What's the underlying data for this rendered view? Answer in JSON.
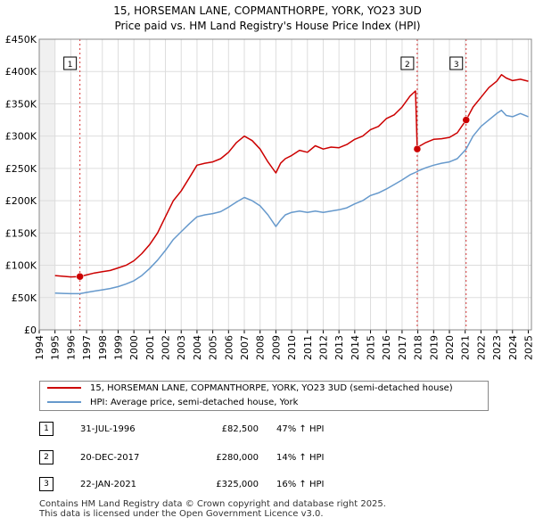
{
  "chart_data": {
    "type": "line",
    "title": "15, HORSEMAN LANE, COPMANTHORPE, YORK, YO23 3UD",
    "subtitle": "Price paid vs. HM Land Registry's House Price Index (HPI)",
    "xlim": [
      1994,
      2025.2
    ],
    "ylim": [
      0,
      450000
    ],
    "x_ticks": [
      1994,
      1995,
      1996,
      1997,
      1998,
      1999,
      2000,
      2001,
      2002,
      2003,
      2004,
      2005,
      2006,
      2007,
      2008,
      2009,
      2010,
      2011,
      2012,
      2013,
      2014,
      2015,
      2016,
      2017,
      2018,
      2019,
      2020,
      2021,
      2022,
      2023,
      2024,
      2025
    ],
    "x_tick_labels": [
      "1994",
      "1995",
      "1996",
      "1997",
      "1998",
      "1999",
      "2000",
      "2001",
      "2002",
      "2003",
      "2004",
      "2005",
      "2006",
      "2007",
      "2008",
      "2009",
      "2010",
      "2011",
      "2012",
      "2013",
      "2014",
      "2015",
      "2016",
      "2017",
      "2018",
      "2019",
      "2020",
      "2021",
      "2022",
      "2023",
      "2024",
      "2025"
    ],
    "y_ticks": [
      0,
      50000,
      100000,
      150000,
      200000,
      250000,
      300000,
      350000,
      400000,
      450000
    ],
    "y_tick_labels": [
      "£0",
      "£50K",
      "£100K",
      "£150K",
      "£200K",
      "£250K",
      "£300K",
      "£350K",
      "£400K",
      "£450K"
    ],
    "grid": true,
    "shaded_before": 1995,
    "series": [
      {
        "name": "15, HORSEMAN LANE, COPMANTHORPE, YORK, YO23 3UD (semi-detached house)",
        "color": "#cc0000",
        "x": [
          1995.0,
          1995.5,
          1996.0,
          1996.58,
          1997.0,
          1997.5,
          1998.0,
          1998.5,
          1999.0,
          1999.5,
          2000.0,
          2000.5,
          2001.0,
          2001.5,
          2002.0,
          2002.5,
          2003.0,
          2003.5,
          2004.0,
          2004.5,
          2005.0,
          2005.5,
          2006.0,
          2006.5,
          2007.0,
          2007.5,
          2008.0,
          2008.5,
          2009.0,
          2009.3,
          2009.6,
          2010.0,
          2010.5,
          2011.0,
          2011.5,
          2012.0,
          2012.5,
          2013.0,
          2013.5,
          2014.0,
          2014.5,
          2015.0,
          2015.5,
          2016.0,
          2016.5,
          2017.0,
          2017.5,
          2017.85,
          2017.96,
          2018.0,
          2018.5,
          2019.0,
          2019.5,
          2020.0,
          2020.5,
          2021.06,
          2021.5,
          2022.0,
          2022.5,
          2023.0,
          2023.3,
          2023.6,
          2024.0,
          2024.5,
          2025.0
        ],
        "values": [
          84000,
          83000,
          82000,
          82500,
          85000,
          88000,
          90000,
          92000,
          96000,
          100000,
          107000,
          118000,
          132000,
          150000,
          175000,
          200000,
          215000,
          235000,
          255000,
          258000,
          260000,
          265000,
          275000,
          290000,
          300000,
          293000,
          280000,
          260000,
          243000,
          258000,
          265000,
          270000,
          278000,
          275000,
          285000,
          280000,
          283000,
          282000,
          287000,
          295000,
          300000,
          310000,
          315000,
          327000,
          333000,
          345000,
          362000,
          370000,
          280000,
          283000,
          290000,
          295000,
          296000,
          298000,
          305000,
          325000,
          345000,
          360000,
          375000,
          385000,
          395000,
          390000,
          386000,
          388000,
          385000
        ]
      },
      {
        "name": "HPI: Average price, semi-detached house, York",
        "color": "#6699cc",
        "x": [
          1995.0,
          1995.5,
          1996.0,
          1996.58,
          1997.0,
          1997.5,
          1998.0,
          1998.5,
          1999.0,
          1999.5,
          2000.0,
          2000.5,
          2001.0,
          2001.5,
          2002.0,
          2002.5,
          2003.0,
          2003.5,
          2004.0,
          2004.5,
          2005.0,
          2005.5,
          2006.0,
          2006.5,
          2007.0,
          2007.5,
          2008.0,
          2008.5,
          2009.0,
          2009.3,
          2009.6,
          2010.0,
          2010.5,
          2011.0,
          2011.5,
          2012.0,
          2012.5,
          2013.0,
          2013.5,
          2014.0,
          2014.5,
          2015.0,
          2015.5,
          2016.0,
          2016.5,
          2017.0,
          2017.5,
          2017.96,
          2018.0,
          2018.5,
          2019.0,
          2019.5,
          2020.0,
          2020.5,
          2021.06,
          2021.5,
          2022.0,
          2022.5,
          2023.0,
          2023.3,
          2023.6,
          2024.0,
          2024.5,
          2025.0
        ],
        "values": [
          57000,
          56500,
          56000,
          56000,
          58000,
          60000,
          62000,
          64000,
          67000,
          71000,
          76000,
          84000,
          95000,
          108000,
          123000,
          140000,
          152000,
          164000,
          175000,
          178000,
          180000,
          183000,
          190000,
          198000,
          205000,
          200000,
          192000,
          178000,
          160000,
          170000,
          178000,
          182000,
          184000,
          182000,
          184000,
          182000,
          184000,
          186000,
          189000,
          195000,
          200000,
          208000,
          212000,
          218000,
          225000,
          232000,
          240000,
          245000,
          246000,
          251000,
          255000,
          258000,
          260000,
          265000,
          280000,
          300000,
          315000,
          325000,
          335000,
          340000,
          332000,
          330000,
          335000,
          330000
        ]
      }
    ],
    "sale_markers": [
      {
        "label": "1",
        "x": 1996.58,
        "value": 82500
      },
      {
        "label": "2",
        "x": 2017.96,
        "value": 280000
      },
      {
        "label": "3",
        "x": 2021.06,
        "value": 325000
      }
    ],
    "legend": {
      "property": "15, HORSEMAN LANE, COPMANTHORPE, YORK, YO23 3UD (semi-detached house)",
      "hpi": "HPI: Average price, semi-detached house, York"
    }
  },
  "sales": [
    {
      "num": "1",
      "date": "31-JUL-1996",
      "price": "£82,500",
      "hpi": "47% ↑ HPI"
    },
    {
      "num": "2",
      "date": "20-DEC-2017",
      "price": "£280,000",
      "hpi": "14% ↑ HPI"
    },
    {
      "num": "3",
      "date": "22-JAN-2021",
      "price": "£325,000",
      "hpi": "16% ↑ HPI"
    }
  ],
  "footer": {
    "line1": "Contains HM Land Registry data © Crown copyright and database right 2025.",
    "line2": "This data is licensed under the Open Government Licence v3.0."
  },
  "colors": {
    "property": "#cc0000",
    "hpi": "#6699cc",
    "grid": "#dddddd",
    "sale_line": "#cc0000"
  }
}
